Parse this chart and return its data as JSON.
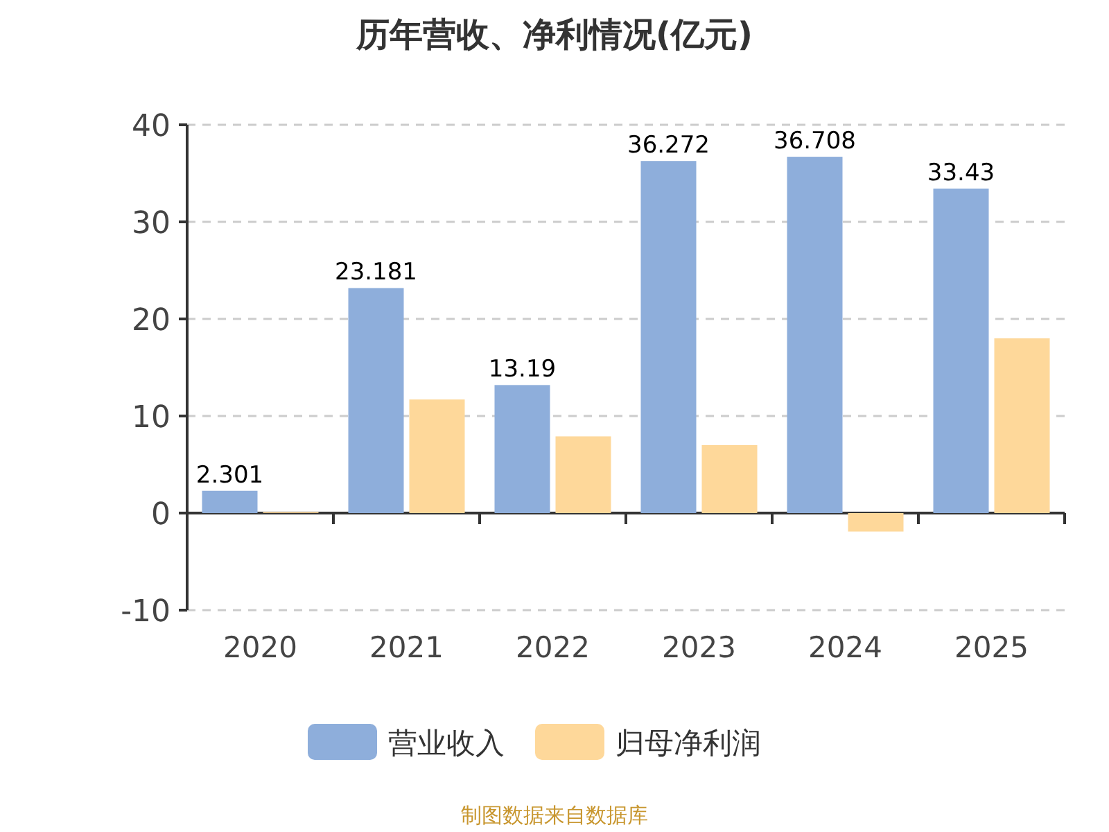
{
  "chart_data": {
    "type": "bar",
    "title": "历年营收、净利情况(亿元)",
    "categories": [
      "2020",
      "2021",
      "2022",
      "2023",
      "2024",
      "2025"
    ],
    "series": [
      {
        "name": "营业收入",
        "color": "#8eaedb",
        "values": [
          2.301,
          23.181,
          13.19,
          36.272,
          36.708,
          33.43
        ],
        "data_labels": true
      },
      {
        "name": "归母净利润",
        "color": "#fed89a",
        "values": [
          0.1,
          11.7,
          7.9,
          7.0,
          -1.9,
          18.0
        ]
      }
    ],
    "ylim": [
      -10,
      40
    ],
    "yticks": [
      -10,
      0,
      10,
      20,
      30,
      40
    ],
    "grid": "y",
    "legend": "bottom",
    "annotations": [
      "制图数据来自数据库"
    ]
  }
}
